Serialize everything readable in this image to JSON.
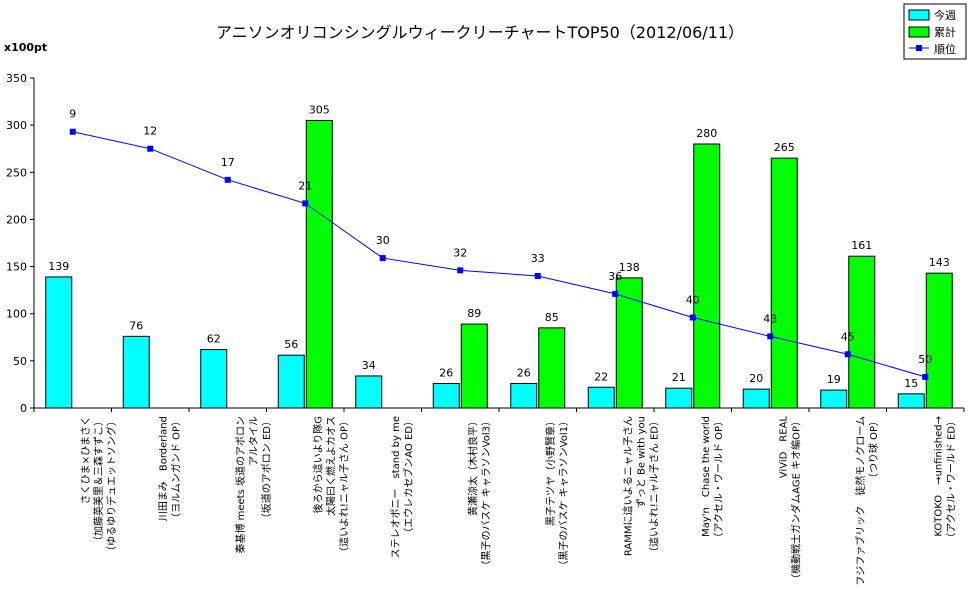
{
  "chart_data": {
    "type": "bar",
    "title": "アニソンオリコンシングルウィークリーチャートTOP50（2012/06/11）",
    "ylabel": "x100pt",
    "ylim": [
      0,
      350
    ],
    "yticks": [
      0,
      50,
      100,
      150,
      200,
      250,
      300,
      350
    ],
    "grid": false,
    "legend_position": "top-right",
    "categories": [
      [
        "さくひま×ひまさく",
        "（加藤英美里＆三森すずこ）",
        "（ゆるゆりデュエットソング）"
      ],
      [
        "川田まみ　Borderland",
        "（ヨルムンガンド OP）"
      ],
      [
        "秦基博 meets 坂道のアポロン",
        "アルタイル",
        "（坂道のアポロン ED）"
      ],
      [
        "後ろから這いより隊G",
        "太陽曰く燃えよカオス",
        "（這いよれ!ニャル子さん OP）"
      ],
      [
        "ステレオポニー　stand by me",
        "（エウレカセブンAO ED）"
      ],
      [
        "黄瀬涼太（木村良平）",
        "（黒子のバスケ キャラソンVol3）"
      ],
      [
        "黒子テツヤ（小野賢章）",
        "（黒子のバスケ キャラソンVol1）"
      ],
      [
        "RAMMに這いよるニャル子さん",
        "ずっと Be with you",
        "（這いよれ!ニャル子さん ED）"
      ],
      [
        "May'n　Chase the world",
        "（アクセル・ワールド OP）"
      ],
      [
        "ViViD　REAL",
        "（機動戦士ガンダムAGE キオ編OP）"
      ],
      [
        "フジファブリック　徒然モノクローム",
        "（つり球 OP）"
      ],
      [
        "KOTOKO　→unfinished→",
        "（アクセル・ワールド ED）"
      ]
    ],
    "series": [
      {
        "name": "今週",
        "kind": "bar",
        "color": "#00ffff",
        "values": [
          139,
          76,
          62,
          56,
          34,
          26,
          26,
          22,
          21,
          20,
          19,
          15
        ]
      },
      {
        "name": "累計",
        "kind": "bar",
        "color": "#00ff00",
        "values": [
          null,
          null,
          null,
          305,
          null,
          89,
          85,
          138,
          280,
          265,
          161,
          143
        ]
      },
      {
        "name": "順位",
        "kind": "line",
        "color": "#0000ff",
        "values": [
          9,
          12,
          17,
          21,
          30,
          32,
          33,
          36,
          40,
          43,
          45,
          50
        ],
        "plot_values": [
          293,
          275,
          242,
          217,
          159,
          146,
          140,
          121,
          96,
          76,
          57,
          33
        ]
      }
    ]
  }
}
